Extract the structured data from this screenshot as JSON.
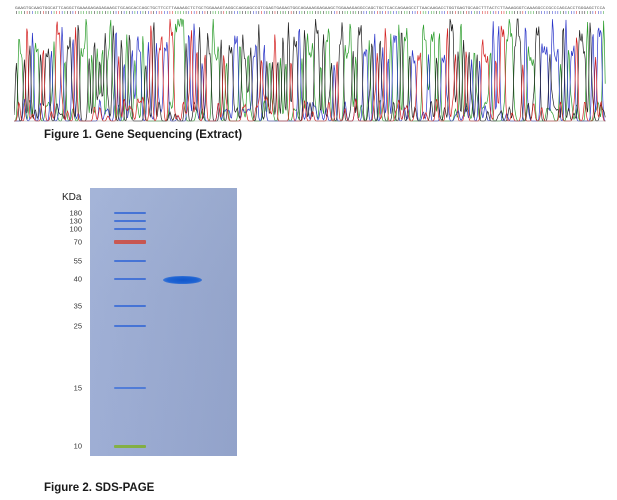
{
  "sequencing": {
    "caption": "Figure 1. Gene Sequencing (Extract)",
    "base_colors": {
      "A": "#2e9e2e",
      "C": "#2a35c8",
      "G": "#222222",
      "T": "#d42020"
    },
    "sequence_text": "GAAGTGCAAGTGGCATTCAGGCTGAAAGAGAGAGAAGCTGCAGCACCAGCTGCTTCCTTAAAAGCTCTGCTGGAAAGTAGGCCAGGAGCCGTCGAGTGAGAGTGGCAGAAAGGAGAAGCTGGAAAGAGGCCAGCTGCTCACCAGAAGCCTTAACAAGACCTGGTGAGTGCAGCTTTACTCTTAAAGGGTCAAAGGCCCGCCCAGCACCTGGGAGCTCCA"
  },
  "sds_page": {
    "caption": "Figure 2. SDS-PAGE",
    "unit_label": "KDa",
    "markers": [
      {
        "label": "180",
        "color": "#3f6fd6"
      },
      {
        "label": "130",
        "color": "#3f6fd6"
      },
      {
        "label": "100",
        "color": "#3f6fd6"
      },
      {
        "label": "70",
        "color": "#c8504a"
      },
      {
        "label": "55",
        "color": "#3f6fd6"
      },
      {
        "label": "40",
        "color": "#3f6fd6"
      },
      {
        "label": "35",
        "color": "#3f6fd6"
      },
      {
        "label": "25",
        "color": "#3f6fd6"
      },
      {
        "label": "15",
        "color": "#4a78d8"
      },
      {
        "label": "10",
        "color": "#7fae3c"
      }
    ],
    "sample_band_kda": "40"
  }
}
